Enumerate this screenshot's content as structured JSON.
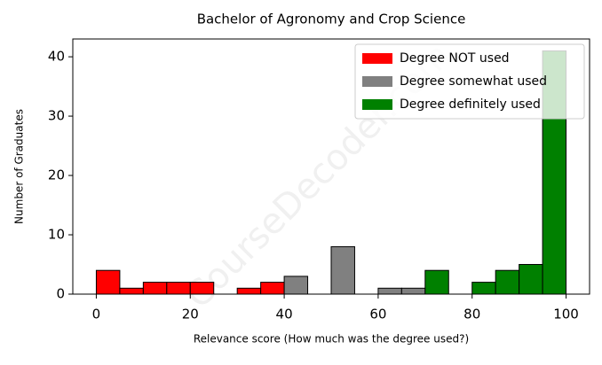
{
  "chart_data": {
    "type": "histogram",
    "title": "Bachelor of Agronomy and Crop Science",
    "x_label": "Relevance score (How much was the degree used?)",
    "y_label": "Number of Graduates",
    "watermark": "CourseDecoder.com",
    "bins": [
      0,
      5,
      10,
      15,
      20,
      25,
      30,
      35,
      40,
      45,
      50,
      55,
      60,
      65,
      70,
      75,
      80,
      85,
      90,
      95,
      100
    ],
    "series": [
      {
        "name": "Degree NOT used",
        "color": "#ff0000",
        "values": [
          4,
          1,
          2,
          2,
          2,
          0,
          1,
          2,
          0,
          0,
          0,
          0,
          0,
          0,
          0,
          0,
          0,
          0,
          0,
          0
        ]
      },
      {
        "name": "Degree somewhat used",
        "color": "#808080",
        "values": [
          0,
          0,
          0,
          0,
          0,
          0,
          0,
          0,
          3,
          0,
          8,
          0,
          1,
          1,
          0,
          0,
          0,
          0,
          0,
          0
        ]
      },
      {
        "name": "Degree definitely used",
        "color": "#008000",
        "values": [
          0,
          0,
          0,
          0,
          0,
          0,
          0,
          0,
          0,
          0,
          0,
          0,
          0,
          0,
          4,
          0,
          2,
          4,
          5,
          41
        ]
      }
    ],
    "xlim": [
      -5,
      105
    ],
    "xticks": [
      0,
      20,
      40,
      60,
      80,
      100
    ],
    "ylim": [
      0,
      43
    ],
    "yticks": [
      0,
      10,
      20,
      30,
      40
    ],
    "legend": "upper right"
  }
}
